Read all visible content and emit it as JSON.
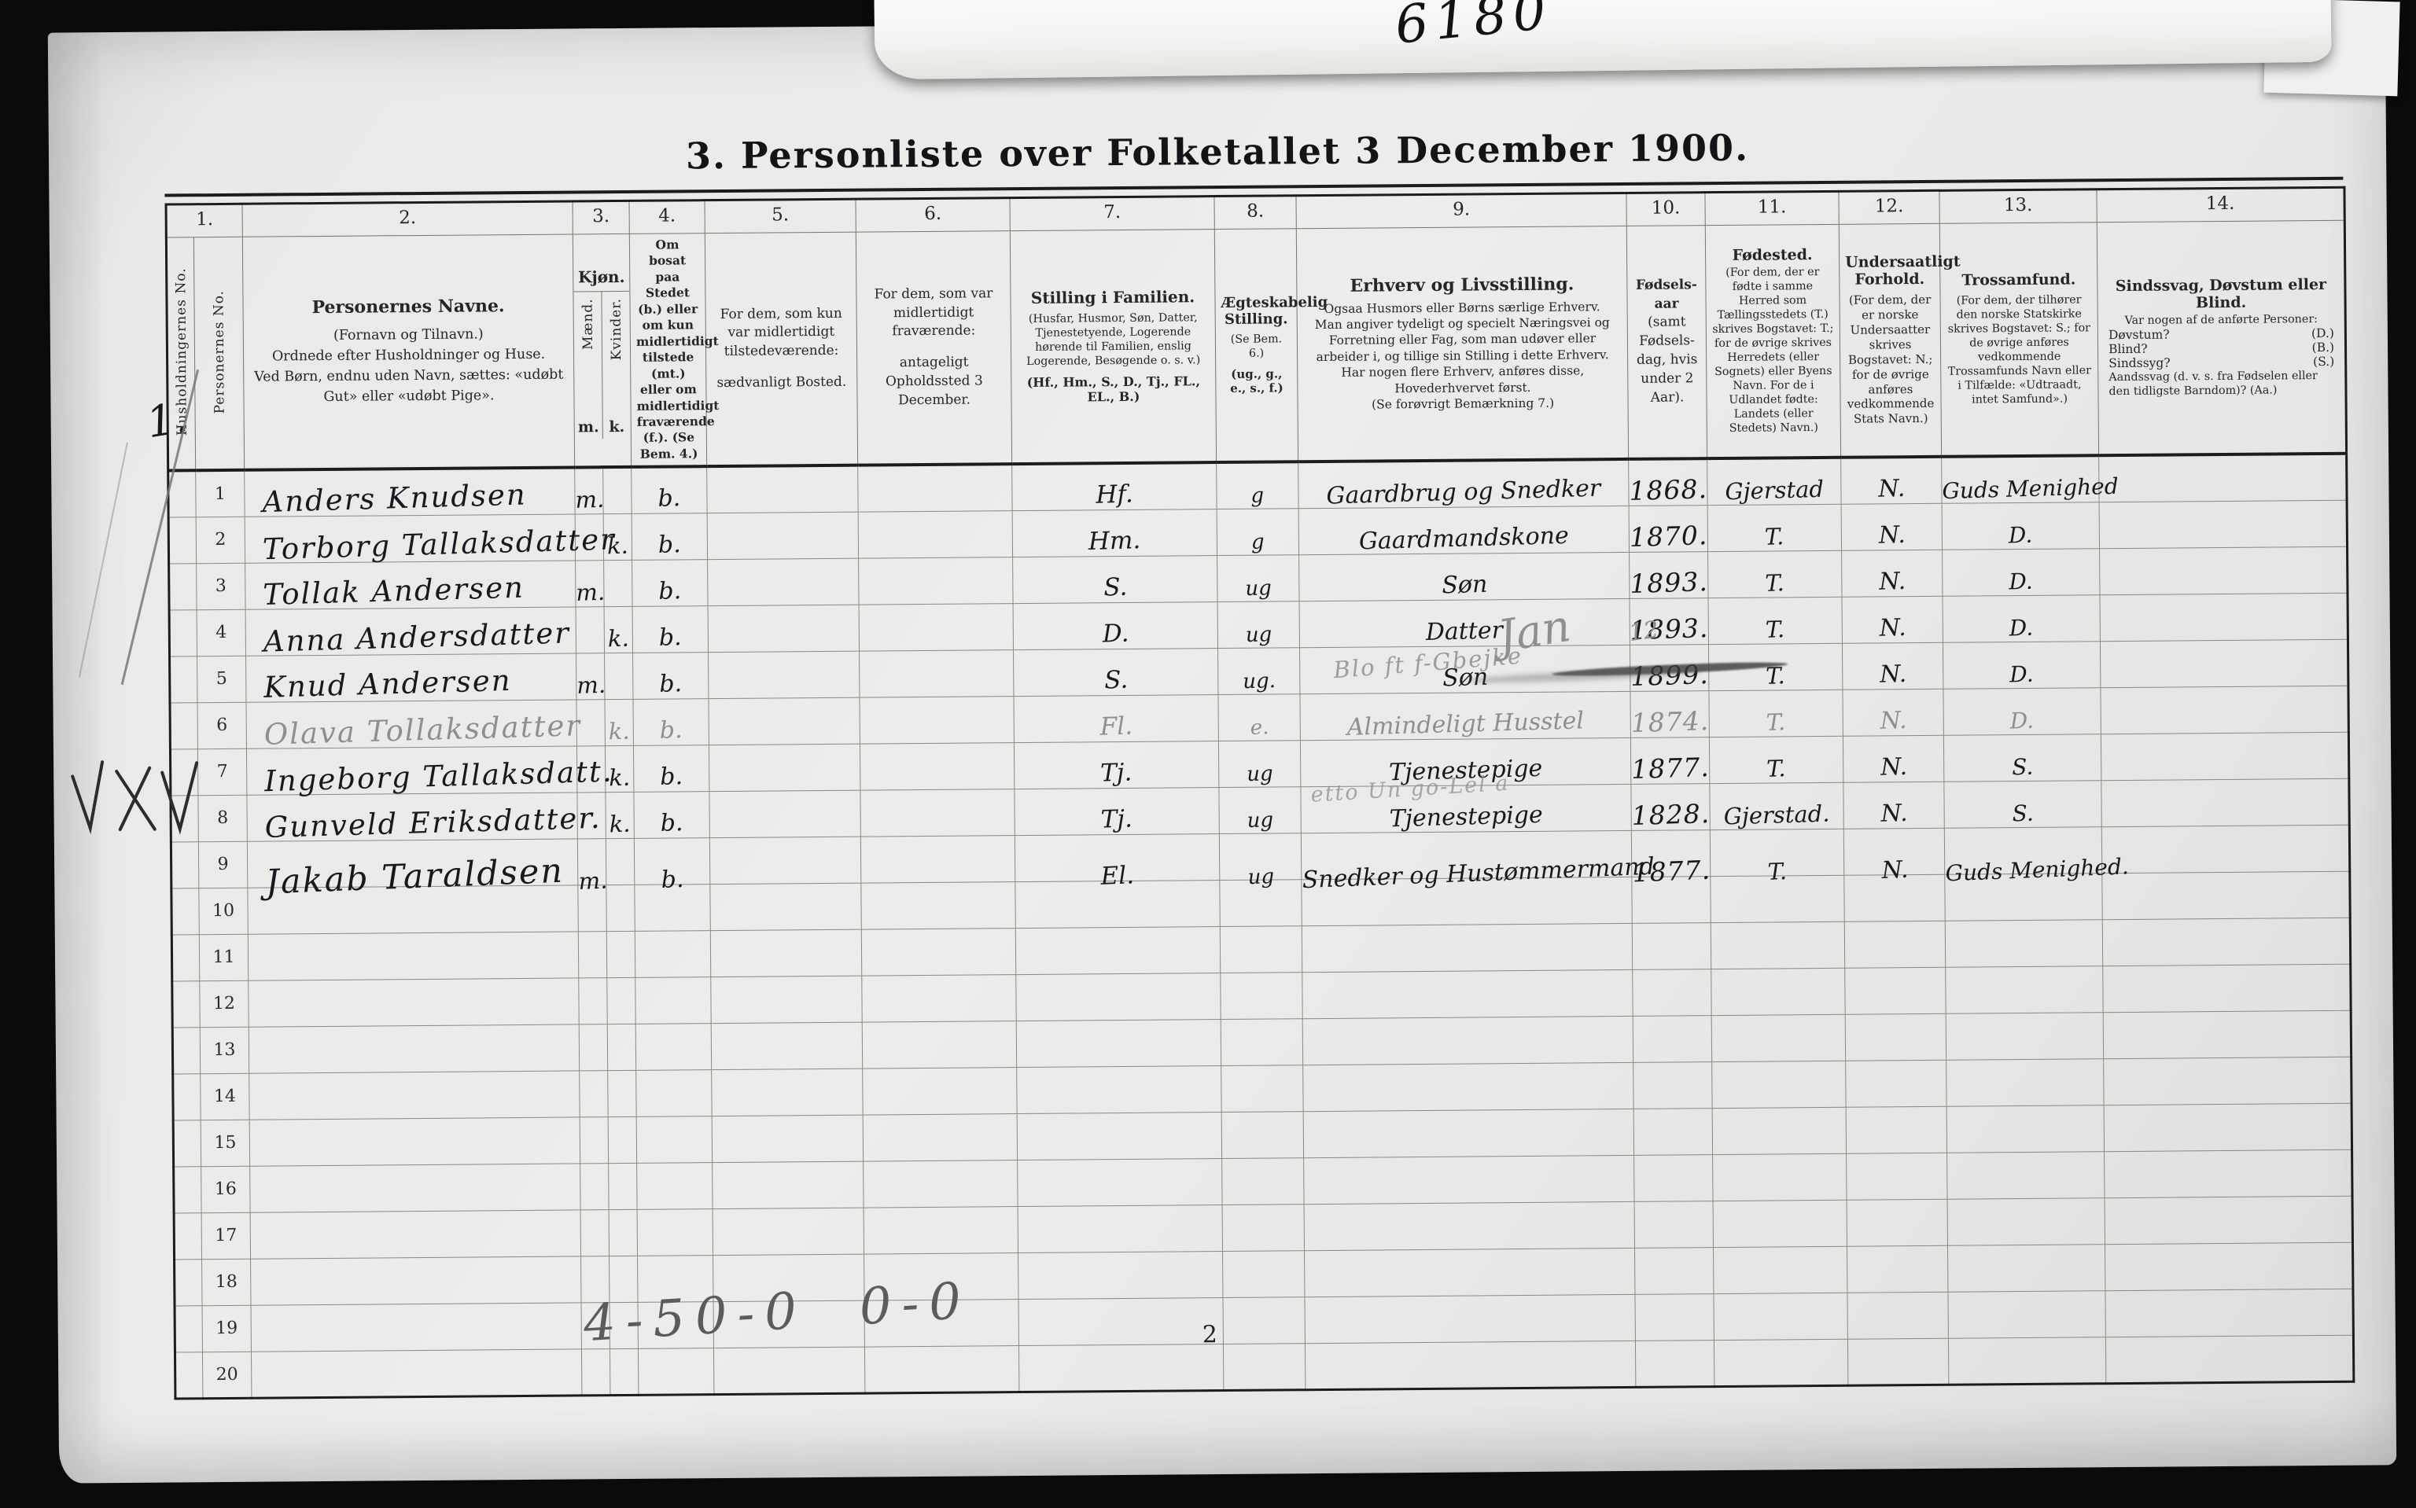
{
  "slip": {
    "number": "6180"
  },
  "title": "3. Personliste over Folketallet 3 December 1900.",
  "page_number": "2",
  "margin": {
    "household_number": "1.",
    "check_mark": "VXV",
    "footer_tally": "4-50-0 0-0"
  },
  "annotations": {
    "jan": "Jan",
    "twelve": "12",
    "row6_note": "Blo ft f-Gbejke",
    "row9_note": "etto Un go-Lel a"
  },
  "header": {
    "cols": [
      {
        "no": "1.",
        "label_a": "Husholdningernes No.",
        "label_b": "Personernes No."
      },
      {
        "no": "2.",
        "title": "Personernes Navne.",
        "line1": "(Fornavn og Tilnavn.)",
        "line2": "Ordnede efter Husholdninger og Huse.",
        "line3": "Ved Børn, endnu uden Navn, sættes: «udøbt Gut» eller «udøbt Pige»."
      },
      {
        "no": "3.",
        "title": "Kjøn.",
        "sub_a": "Mænd.",
        "sub_b": "Kvinder.",
        "abbr_a": "m.",
        "abbr_b": "k."
      },
      {
        "no": "4.",
        "text": "Om bosat paa Stedet (b.) eller om kun midlertidigt tilstede (mt.) eller om midlertidigt fraværende (f.). (Se Bem. 4.)"
      },
      {
        "no": "5.",
        "t1": "For dem, som kun var midlertidigt tilstedeværende:",
        "t2": "sædvanligt Bosted."
      },
      {
        "no": "6.",
        "t1": "For dem, som var midlertidigt fraværende:",
        "t2": "antageligt Opholdssted 3 December."
      },
      {
        "no": "7.",
        "title": "Stilling i Familien.",
        "text": "(Husfar, Husmor, Søn, Datter, Tjenestetyende, Logerende hørende til Familien, enslig Logerende, Besøgende o. s. v.)",
        "abbr": "(Hf., Hm., S., D., Tj., FL., EL., B.)"
      },
      {
        "no": "8.",
        "title": "Ægteskabelig Stilling.",
        "note": "(Se Bem. 6.)",
        "abbr": "(ug., g., e., s., f.)"
      },
      {
        "no": "9.",
        "title": "Erhverv og Livsstilling.",
        "line1": "Ogsaa Husmors eller Børns særlige Erhverv.",
        "line2": "Man angiver tydeligt og specielt Næringsvei og Forretning eller Fag, som man udøver eller arbeider i, og tillige sin Stilling i dette Erhverv.",
        "line3": "Har nogen flere Erhverv, anføres disse, Hovederhvervet først.",
        "line4": "(Se forøvrigt Bemærkning 7.)"
      },
      {
        "no": "10.",
        "title": "Fødsels-aar",
        "text": "(samt Fødsels-dag, hvis under 2 Aar)."
      },
      {
        "no": "11.",
        "title": "Fødested.",
        "text": "(For dem, der er fødte i samme Herred som Tællingsstedets (T.) skrives Bogstavet: T.; for de øvrige skrives Herredets (eller Sognets) eller Byens Navn. For de i Udlandet fødte: Landets (eller Stedets) Navn.)"
      },
      {
        "no": "12.",
        "title": "Undersaatligt Forhold.",
        "text": "(For dem, der er norske Undersaatter skrives Bogstavet: N.; for de øvrige anføres vedkommende Stats Navn.)"
      },
      {
        "no": "13.",
        "title": "Trossamfund.",
        "text": "(For dem, der tilhører den norske Statskirke skrives Bogstavet: S.; for de øvrige anføres vedkommende Trossamfunds Navn eller i Tilfælde: «Udtraadt, intet Samfund».)"
      },
      {
        "no": "14.",
        "title": "Sindssvag, Døvstum eller Blind.",
        "text": "Var nogen af de anførte Personer:",
        "q1": "Døvstum?",
        "c1": "(D.)",
        "q2": "Blind?",
        "c2": "(B.)",
        "q3": "Sindssyg?",
        "c3": "(S.)",
        "q4": "Aandssvag (d. v. s. fra Fødselen eller den tidligste Barndom)? (Aa.)"
      }
    ]
  },
  "row_numbers": [
    "1",
    "2",
    "3",
    "4",
    "5",
    "6",
    "7",
    "8",
    "9",
    "10",
    "11",
    "12",
    "13",
    "14",
    "15",
    "16",
    "17",
    "18",
    "19",
    "20"
  ],
  "persons": [
    {
      "no": "1",
      "name": "Anders Knudsen",
      "m": "m.",
      "k": "",
      "bosat": "b.",
      "stilling": "Hf.",
      "egtesk": "g",
      "erhverv": "Gaardbrug og Snedker",
      "aar": "1868.",
      "fodested": "Gjerstad",
      "undersaat": "N.",
      "tros": "Guds Menighed"
    },
    {
      "no": "2",
      "name": "Torborg Tallaksdatter",
      "m": "",
      "k": "k.",
      "bosat": "b.",
      "stilling": "Hm.",
      "egtesk": "g",
      "erhverv": "Gaardmandskone",
      "aar": "1870.",
      "fodested": "T.",
      "undersaat": "N.",
      "tros": "D."
    },
    {
      "no": "3",
      "name": "Tollak Andersen",
      "m": "m.",
      "k": "",
      "bosat": "b.",
      "stilling": "S.",
      "egtesk": "ug",
      "erhverv": "Søn",
      "aar": "1893.",
      "fodested": "T.",
      "undersaat": "N.",
      "tros": "D."
    },
    {
      "no": "4",
      "name": "Anna Andersdatter",
      "m": "",
      "k": "k.",
      "bosat": "b.",
      "stilling": "D.",
      "egtesk": "ug",
      "erhverv": "Datter",
      "aar": "1893.",
      "fodested": "T.",
      "undersaat": "N.",
      "tros": "D."
    },
    {
      "no": "5",
      "name": "Knud Andersen",
      "m": "m.",
      "k": "",
      "bosat": "b.",
      "stilling": "S.",
      "egtesk": "ug.",
      "erhverv": "Søn",
      "aar": "1899.",
      "fodested": "T.",
      "undersaat": "N.",
      "tros": "D."
    },
    {
      "no": "6",
      "name": "Olava Tollaksdatter",
      "m": "",
      "k": "k.",
      "bosat": "b.",
      "stilling": "Fl.",
      "egtesk": "e.",
      "erhverv": "Almindeligt Husstel",
      "aar": "1874.",
      "fodested": "T.",
      "undersaat": "N.",
      "tros": "D.",
      "faint": true
    },
    {
      "no": "7",
      "name": "Ingeborg Tallaksdatt.",
      "m": "",
      "k": "k.",
      "bosat": "b.",
      "stilling": "Tj.",
      "egtesk": "ug",
      "erhverv": "Tjenestepige",
      "aar": "1877.",
      "fodested": "T.",
      "undersaat": "N.",
      "tros": "S."
    },
    {
      "no": "8",
      "name": "Gunveld Eriksdatter.",
      "m": "",
      "k": "k.",
      "bosat": "b.",
      "stilling": "Tj.",
      "egtesk": "ug",
      "erhverv": "Tjenestepige",
      "aar": "1828.",
      "fodested": "Gjerstad.",
      "undersaat": "N.",
      "tros": "S."
    },
    {
      "no": "9",
      "name": "Jakab Taraldsen",
      "m": "m.",
      "k": "",
      "bosat": "b.",
      "stilling": "El.",
      "egtesk": "ug",
      "erhverv": "Snedker og Hustømmermand",
      "aar": "1877.",
      "fodested": "T.",
      "undersaat": "N.",
      "tros": "Guds Menighed.",
      "big": true
    }
  ]
}
